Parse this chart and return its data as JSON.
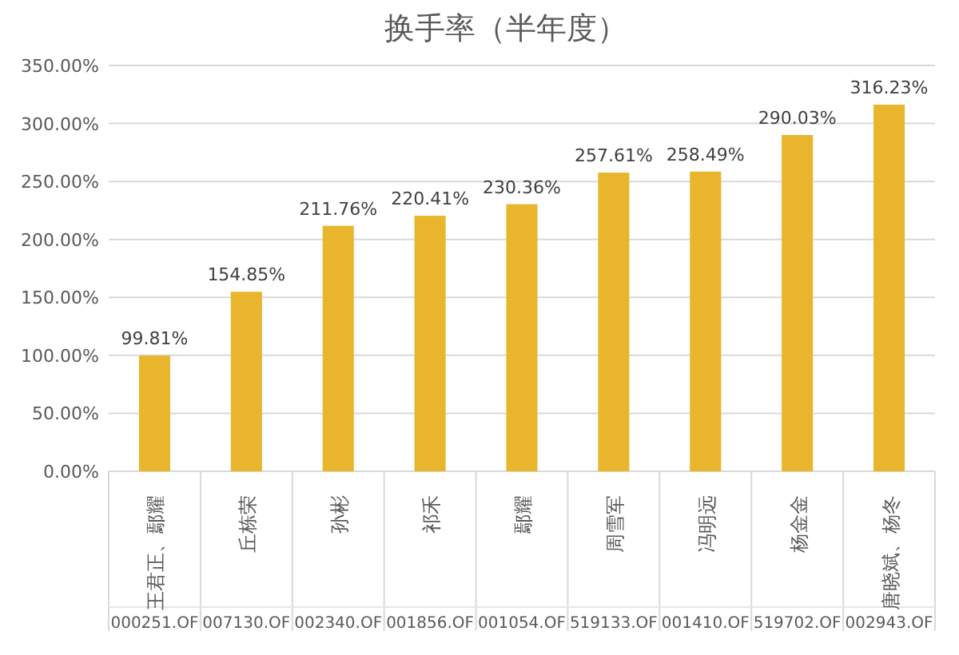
{
  "chart_data": {
    "type": "bar",
    "title": "换手率（半年度）",
    "categories": [
      "王君正、鄢耀\n000251.OF",
      "丘栋荣\n007130.OF",
      "孙彬\n002340.OF",
      "祁禾\n001856.OF",
      "鄢耀\n001054.OF",
      "周雪军\n519133.OF",
      "冯明远\n001410.OF",
      "杨金金\n519702.OF",
      "唐晓斌、杨冬\n002943.OF"
    ],
    "values": [
      99.81,
      154.85,
      211.76,
      220.41,
      230.36,
      257.61,
      258.49,
      290.03,
      316.23
    ],
    "value_labels": [
      "99.81%",
      "154.85%",
      "211.76%",
      "220.41%",
      "230.36%",
      "257.61%",
      "258.49%",
      "290.03%",
      "316.23%"
    ],
    "color": "#e8b52c",
    "ylim": [
      0,
      350
    ],
    "yticks": [
      {
        "value": 0,
        "label": "0.00%"
      },
      {
        "value": 50,
        "label": "50.00%"
      },
      {
        "value": 100,
        "label": "100.00%"
      },
      {
        "value": 150,
        "label": "150.00%"
      },
      {
        "value": 200,
        "label": "200.00%"
      },
      {
        "value": 250,
        "label": "250.00%"
      },
      {
        "value": 300,
        "label": "300.00%"
      },
      {
        "value": 350,
        "label": "350.00%"
      }
    ],
    "grid": "y"
  }
}
